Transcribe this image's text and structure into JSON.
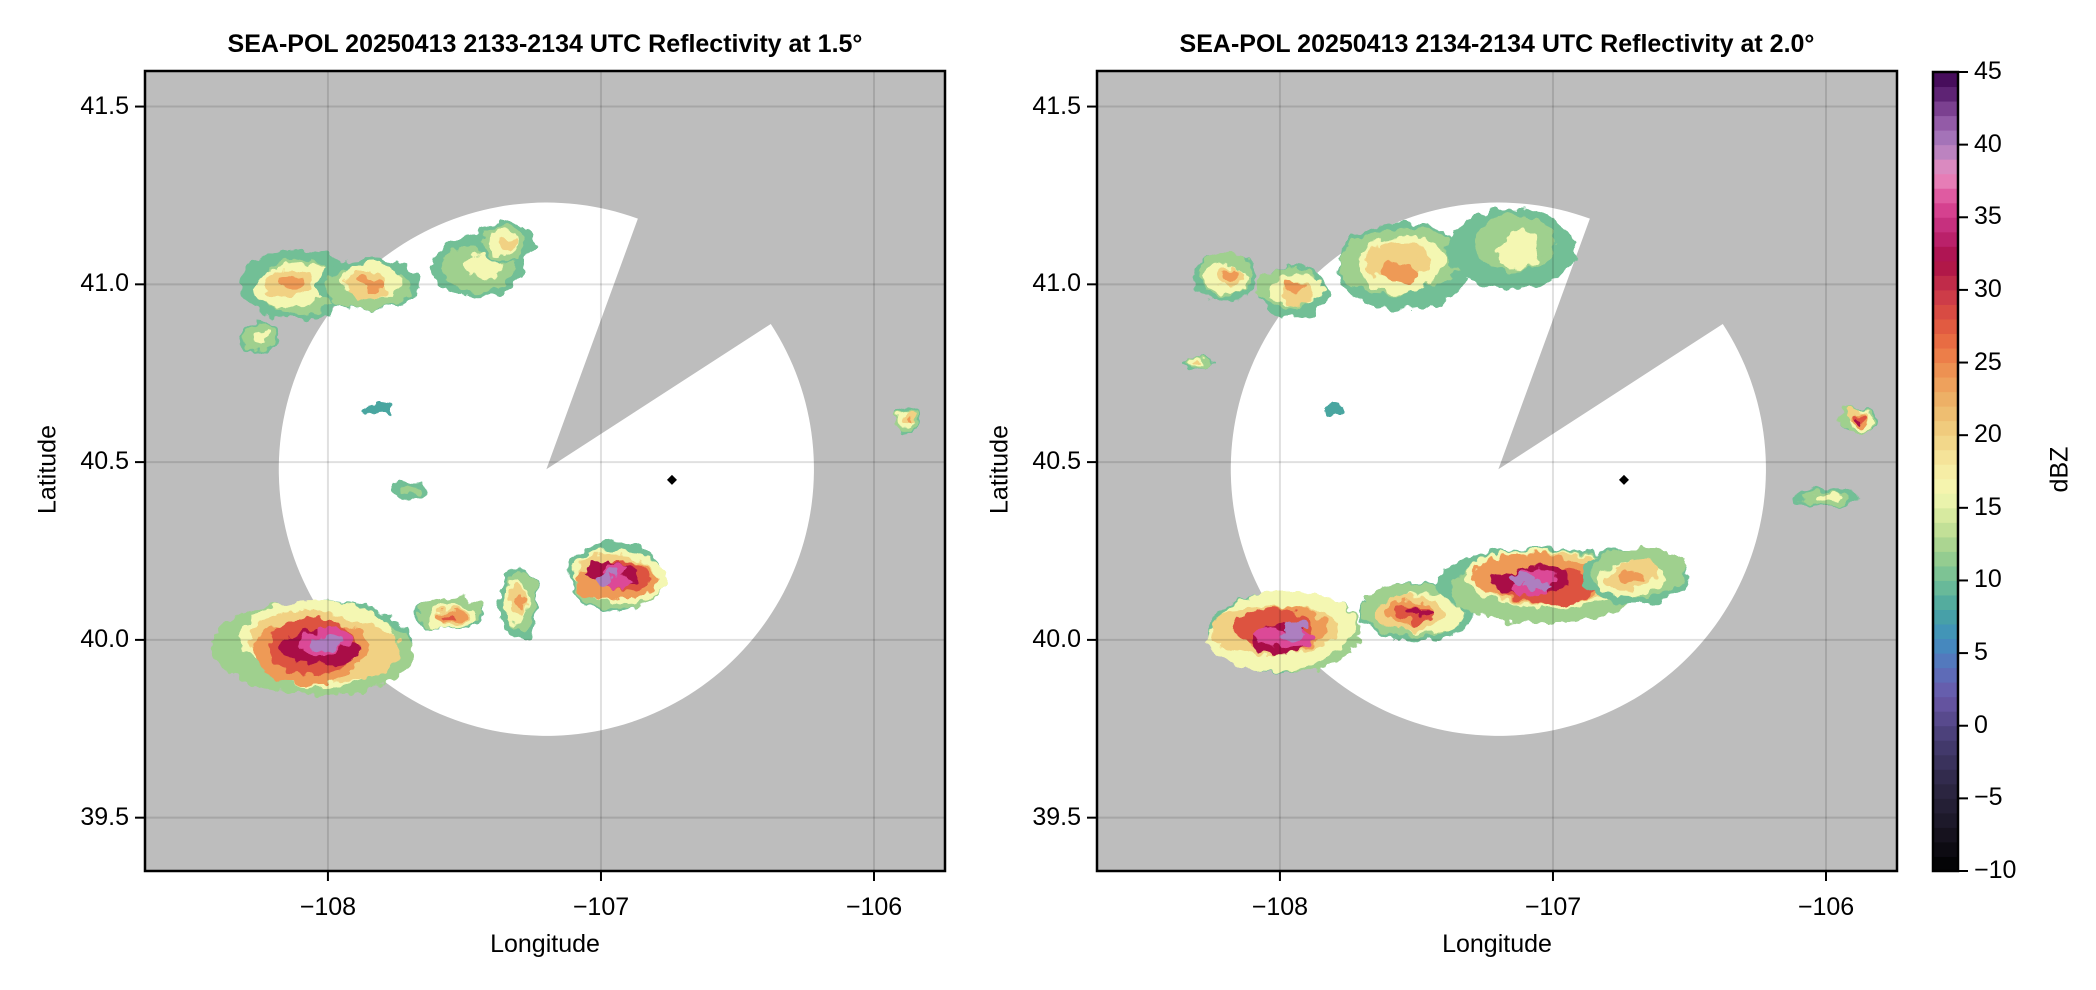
{
  "chart_data": [
    {
      "type": "heatmap",
      "subtype": "radar-ppi",
      "title": "SEA-POL 20250413 2133-2134 UTC Reflectivity at 1.5°",
      "xlabel": "Longitude",
      "ylabel": "Latitude",
      "xlim": [
        -108.67,
        -105.74
      ],
      "ylim": [
        39.35,
        41.6
      ],
      "xticks": [
        -108,
        -107,
        -106
      ],
      "xtick_labels": [
        "−108",
        "−107",
        "−106"
      ],
      "yticks": [
        39.5,
        40.0,
        40.5,
        41.0,
        41.5
      ],
      "ytick_labels": [
        "39.5",
        "40.0",
        "40.5",
        "41.0",
        "41.5"
      ],
      "grid": true,
      "background_color": "#bdbdbd",
      "radar_site": {
        "lon": -107.2,
        "lat": 40.48,
        "range_deg_lon": 0.98,
        "range_deg_lat": 0.75
      },
      "blocked_sector_deg": [
        20,
        57
      ],
      "marker": {
        "lon": -106.74,
        "lat": 40.45,
        "shape": "diamond"
      },
      "echoes": [
        {
          "lon": -108.12,
          "lat": 41.0,
          "rx": 0.2,
          "ry": 0.09,
          "peak_dbz": 27
        },
        {
          "lon": -107.85,
          "lat": 41.0,
          "rx": 0.18,
          "ry": 0.08,
          "peak_dbz": 26
        },
        {
          "lon": -107.45,
          "lat": 41.05,
          "rx": 0.2,
          "ry": 0.09,
          "peak_dbz": 18
        },
        {
          "lon": -107.35,
          "lat": 41.12,
          "rx": 0.1,
          "ry": 0.06,
          "peak_dbz": 22
        },
        {
          "lon": -108.25,
          "lat": 40.85,
          "rx": 0.08,
          "ry": 0.05,
          "peak_dbz": 18
        },
        {
          "lon": -108.02,
          "lat": 39.98,
          "rx": 0.36,
          "ry": 0.14,
          "peak_dbz": 43
        },
        {
          "lon": -107.55,
          "lat": 40.07,
          "rx": 0.12,
          "ry": 0.05,
          "peak_dbz": 30
        },
        {
          "lon": -107.3,
          "lat": 40.1,
          "rx": 0.07,
          "ry": 0.1,
          "peak_dbz": 24
        },
        {
          "lon": -106.95,
          "lat": 40.18,
          "rx": 0.2,
          "ry": 0.09,
          "peak_dbz": 40
        },
        {
          "lon": -107.7,
          "lat": 40.42,
          "rx": 0.07,
          "ry": 0.03,
          "peak_dbz": 12
        },
        {
          "lon": -107.82,
          "lat": 40.65,
          "rx": 0.05,
          "ry": 0.02,
          "peak_dbz": 10
        },
        {
          "lon": -105.88,
          "lat": 40.62,
          "rx": 0.05,
          "ry": 0.04,
          "peak_dbz": 26
        }
      ]
    },
    {
      "type": "heatmap",
      "subtype": "radar-ppi",
      "title": "SEA-POL 20250413 2134-2134 UTC Reflectivity at 2.0°",
      "xlabel": "Longitude",
      "ylabel": "Latitude",
      "xlim": [
        -108.67,
        -105.74
      ],
      "ylim": [
        39.35,
        41.6
      ],
      "xticks": [
        -108,
        -107,
        -106
      ],
      "xtick_labels": [
        "−108",
        "−107",
        "−106"
      ],
      "yticks": [
        39.5,
        40.0,
        40.5,
        41.0,
        41.5
      ],
      "ytick_labels": [
        "39.5",
        "40.0",
        "40.5",
        "41.0",
        "41.5"
      ],
      "grid": true,
      "background_color": "#bdbdbd",
      "radar_site": {
        "lon": -107.2,
        "lat": 40.48,
        "range_deg_lon": 0.98,
        "range_deg_lat": 0.75
      },
      "blocked_sector_deg": [
        20,
        57
      ],
      "marker": {
        "lon": -106.74,
        "lat": 40.45,
        "shape": "diamond"
      },
      "echoes": [
        {
          "lon": -108.2,
          "lat": 41.02,
          "rx": 0.12,
          "ry": 0.07,
          "peak_dbz": 24
        },
        {
          "lon": -107.95,
          "lat": 40.98,
          "rx": 0.14,
          "ry": 0.07,
          "peak_dbz": 24
        },
        {
          "lon": -107.55,
          "lat": 41.05,
          "rx": 0.25,
          "ry": 0.12,
          "peak_dbz": 26
        },
        {
          "lon": -107.15,
          "lat": 41.1,
          "rx": 0.22,
          "ry": 0.12,
          "peak_dbz": 16
        },
        {
          "lon": -108.0,
          "lat": 40.02,
          "rx": 0.3,
          "ry": 0.11,
          "peak_dbz": 41
        },
        {
          "lon": -107.5,
          "lat": 40.08,
          "rx": 0.2,
          "ry": 0.08,
          "peak_dbz": 34
        },
        {
          "lon": -107.05,
          "lat": 40.16,
          "rx": 0.35,
          "ry": 0.11,
          "peak_dbz": 40
        },
        {
          "lon": -106.7,
          "lat": 40.18,
          "rx": 0.2,
          "ry": 0.08,
          "peak_dbz": 26
        },
        {
          "lon": -105.88,
          "lat": 40.62,
          "rx": 0.07,
          "ry": 0.04,
          "peak_dbz": 32
        },
        {
          "lon": -106.0,
          "lat": 40.4,
          "rx": 0.12,
          "ry": 0.03,
          "peak_dbz": 16
        },
        {
          "lon": -108.3,
          "lat": 40.78,
          "rx": 0.05,
          "ry": 0.02,
          "peak_dbz": 20
        },
        {
          "lon": -107.8,
          "lat": 40.65,
          "rx": 0.04,
          "ry": 0.02,
          "peak_dbz": 10
        }
      ]
    }
  ],
  "colorbar": {
    "label": "dBZ",
    "range": [
      -10,
      45
    ],
    "ticks": [
      -10,
      -5,
      0,
      5,
      10,
      15,
      20,
      25,
      30,
      35,
      40,
      45
    ],
    "tick_labels": [
      "−10",
      "−5",
      "0",
      "5",
      "10",
      "15",
      "20",
      "25",
      "30",
      "35",
      "40",
      "45"
    ],
    "levels": 55,
    "stops": [
      {
        "v": -10,
        "c": "#000000"
      },
      {
        "v": -7,
        "c": "#1a1624"
      },
      {
        "v": -4,
        "c": "#2e2845"
      },
      {
        "v": -1,
        "c": "#463c72"
      },
      {
        "v": 2,
        "c": "#6a57a8"
      },
      {
        "v": 4,
        "c": "#5a72bc"
      },
      {
        "v": 6,
        "c": "#3f8fbe"
      },
      {
        "v": 8,
        "c": "#4aa6a0"
      },
      {
        "v": 10,
        "c": "#72bf96"
      },
      {
        "v": 12,
        "c": "#9fd08e"
      },
      {
        "v": 14,
        "c": "#cde59a"
      },
      {
        "v": 16,
        "c": "#f4f7b2"
      },
      {
        "v": 18,
        "c": "#f6e9a0"
      },
      {
        "v": 20,
        "c": "#f1d183"
      },
      {
        "v": 22,
        "c": "#edb76b"
      },
      {
        "v": 24,
        "c": "#ee9a57"
      },
      {
        "v": 26,
        "c": "#eb7444"
      },
      {
        "v": 28,
        "c": "#dd5340"
      },
      {
        "v": 30,
        "c": "#c8344a"
      },
      {
        "v": 32,
        "c": "#a90f47"
      },
      {
        "v": 34,
        "c": "#bf2775"
      },
      {
        "v": 36,
        "c": "#dc4a97"
      },
      {
        "v": 38,
        "c": "#e98ec0"
      },
      {
        "v": 40,
        "c": "#ad7fc0"
      },
      {
        "v": 42,
        "c": "#8a4f9e"
      },
      {
        "v": 44,
        "c": "#4f1466"
      },
      {
        "v": 45,
        "c": "#3f0552"
      }
    ]
  }
}
